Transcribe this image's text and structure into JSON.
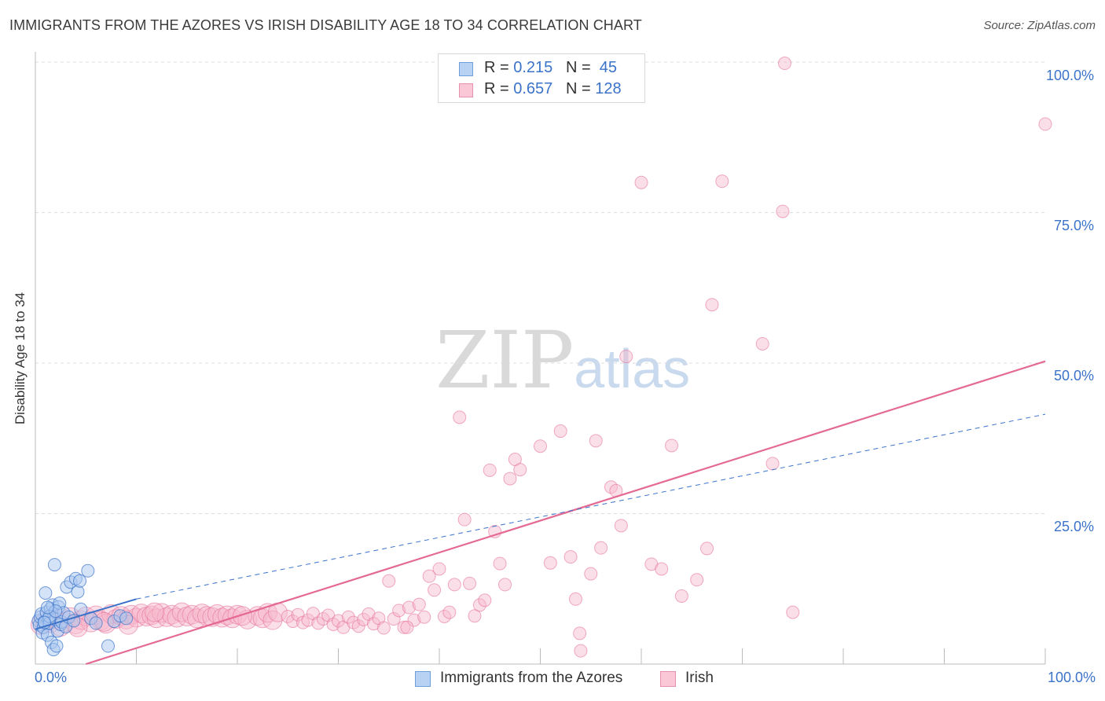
{
  "title": "IMMIGRANTS FROM THE AZORES VS IRISH DISABILITY AGE 18 TO 34 CORRELATION CHART",
  "source": "Source: ZipAtlas.com",
  "watermark": {
    "zip": "ZIP",
    "atlas": "atlas"
  },
  "colors": {
    "blue": "#3b73c9",
    "blue_fill": "#a9c8f0",
    "pink": "#e46a94",
    "pink_fill": "#f6b9cc",
    "grid": "#dddddd",
    "axis_text": "#3b73c9"
  },
  "legend": {
    "rows": [
      {
        "r_label": "R = ",
        "r_value": "0.215",
        "n_label": "N = ",
        "n_value": "45"
      },
      {
        "r_label": "R = ",
        "r_value": "0.657",
        "n_label": "N = ",
        "n_value": "128"
      }
    ]
  },
  "bottom_legend": {
    "series1": "Immigrants from the Azores",
    "series2": "Irish"
  },
  "chart_data": {
    "type": "scatter",
    "title": "IMMIGRANTS FROM THE AZORES VS IRISH DISABILITY AGE 18 TO 34 CORRELATION CHART",
    "xlabel": "",
    "ylabel": "Disability Age 18 to 34",
    "xlim": [
      0,
      100
    ],
    "ylim": [
      0,
      103
    ],
    "x_tick_labels": [
      "0.0%",
      "100.0%"
    ],
    "y_tick_labels": [
      "100.0%",
      "75.0%",
      "50.0%",
      "25.0%"
    ],
    "y_ticks": [
      100,
      75,
      50,
      25
    ],
    "series": [
      {
        "name": "Immigrants from the Azores",
        "r": 0.215,
        "n": 45,
        "points": [
          [
            0.3,
            7.2
          ],
          [
            0.4,
            6.5
          ],
          [
            0.5,
            7.8
          ],
          [
            0.6,
            8.3
          ],
          [
            0.7,
            5.2
          ],
          [
            0.8,
            6.1
          ],
          [
            0.9,
            7.0
          ],
          [
            1.0,
            11.8
          ],
          [
            1.1,
            8.6
          ],
          [
            1.2,
            4.8
          ],
          [
            1.3,
            7.5
          ],
          [
            1.4,
            6.8
          ],
          [
            1.5,
            9.2
          ],
          [
            1.6,
            3.6
          ],
          [
            1.7,
            9.8
          ],
          [
            1.8,
            2.4
          ],
          [
            1.9,
            16.5
          ],
          [
            2.0,
            7.4
          ],
          [
            2.1,
            3.0
          ],
          [
            2.2,
            5.5
          ],
          [
            2.3,
            9.5
          ],
          [
            2.4,
            10.1
          ],
          [
            2.5,
            6.6
          ],
          [
            2.6,
            7.0
          ],
          [
            2.8,
            8.5
          ],
          [
            3.0,
            6.2
          ],
          [
            3.1,
            12.8
          ],
          [
            3.3,
            7.8
          ],
          [
            3.5,
            13.6
          ],
          [
            4.0,
            14.2
          ],
          [
            4.2,
            12.0
          ],
          [
            4.4,
            13.8
          ],
          [
            4.5,
            9.1
          ],
          [
            5.2,
            15.5
          ],
          [
            5.5,
            7.6
          ],
          [
            6.0,
            6.8
          ],
          [
            7.2,
            3.0
          ],
          [
            7.8,
            7.1
          ],
          [
            8.4,
            8.0
          ],
          [
            9.0,
            7.6
          ],
          [
            1.4,
            7.9
          ],
          [
            0.9,
            6.9
          ],
          [
            2.0,
            8.8
          ],
          [
            1.2,
            9.4
          ],
          [
            3.8,
            7.2
          ]
        ],
        "trend": {
          "x": [
            0,
            10
          ],
          "y": [
            5.8,
            10.8
          ],
          "dashed_extension": {
            "x": [
              10,
              100
            ],
            "y": [
              10.8,
              41.5
            ]
          }
        }
      },
      {
        "name": "Irish",
        "r": 0.657,
        "n": 128,
        "points": [
          [
            0.5,
            6.5
          ],
          [
            1.0,
            7.2
          ],
          [
            1.5,
            6.8
          ],
          [
            2.0,
            7.5
          ],
          [
            2.5,
            6.2
          ],
          [
            3.0,
            7.0
          ],
          [
            3.5,
            7.8
          ],
          [
            4.0,
            6.6
          ],
          [
            4.5,
            7.3
          ],
          [
            5.0,
            7.9
          ],
          [
            5.5,
            6.9
          ],
          [
            6.0,
            8.1
          ],
          [
            6.5,
            7.2
          ],
          [
            7.0,
            6.7
          ],
          [
            7.5,
            8.3
          ],
          [
            8.0,
            7.5
          ],
          [
            8.5,
            8.0
          ],
          [
            9.0,
            7.4
          ],
          [
            9.5,
            8.2
          ],
          [
            10.0,
            7.7
          ],
          [
            10.5,
            8.4
          ],
          [
            11.0,
            7.9
          ],
          [
            11.5,
            8.1
          ],
          [
            12.0,
            7.6
          ],
          [
            12.5,
            8.5
          ],
          [
            13.0,
            7.8
          ],
          [
            13.5,
            8.2
          ],
          [
            14.0,
            7.7
          ],
          [
            14.5,
            8.6
          ],
          [
            15.0,
            7.9
          ],
          [
            15.5,
            8.2
          ],
          [
            16.0,
            7.6
          ],
          [
            16.5,
            8.4
          ],
          [
            17.0,
            8.0
          ],
          [
            17.5,
            7.8
          ],
          [
            18.0,
            8.3
          ],
          [
            18.5,
            7.7
          ],
          [
            19.0,
            8.1
          ],
          [
            19.5,
            7.6
          ],
          [
            20.0,
            8.2
          ],
          [
            21.0,
            7.4
          ],
          [
            22.0,
            8.0
          ],
          [
            22.5,
            7.6
          ],
          [
            23.0,
            8.5
          ],
          [
            23.5,
            7.3
          ],
          [
            24.0,
            8.6
          ],
          [
            25.0,
            7.9
          ],
          [
            25.5,
            7.1
          ],
          [
            26.0,
            8.2
          ],
          [
            26.5,
            6.9
          ],
          [
            27.0,
            7.3
          ],
          [
            27.5,
            8.4
          ],
          [
            28.0,
            6.8
          ],
          [
            28.5,
            7.5
          ],
          [
            29.0,
            8.1
          ],
          [
            29.5,
            6.6
          ],
          [
            30.0,
            7.2
          ],
          [
            30.5,
            6.1
          ],
          [
            31.0,
            7.8
          ],
          [
            31.5,
            6.9
          ],
          [
            32.0,
            6.3
          ],
          [
            32.5,
            7.4
          ],
          [
            33.0,
            8.3
          ],
          [
            33.5,
            6.7
          ],
          [
            34.0,
            7.6
          ],
          [
            34.5,
            6.0
          ],
          [
            35.0,
            13.8
          ],
          [
            35.5,
            7.5
          ],
          [
            36.0,
            8.9
          ],
          [
            36.5,
            6.1
          ],
          [
            37.0,
            9.4
          ],
          [
            37.5,
            7.3
          ],
          [
            38.0,
            9.9
          ],
          [
            38.5,
            7.8
          ],
          [
            39.0,
            14.6
          ],
          [
            39.5,
            12.3
          ],
          [
            40.0,
            15.8
          ],
          [
            40.5,
            7.9
          ],
          [
            41.0,
            8.6
          ],
          [
            41.5,
            13.2
          ],
          [
            42.0,
            41.0
          ],
          [
            42.5,
            24.0
          ],
          [
            43.0,
            13.4
          ],
          [
            43.5,
            8.0
          ],
          [
            44.0,
            9.8
          ],
          [
            44.5,
            10.6
          ],
          [
            45.0,
            32.2
          ],
          [
            45.5,
            22.0
          ],
          [
            46.0,
            16.7
          ],
          [
            46.5,
            13.2
          ],
          [
            47.0,
            30.8
          ],
          [
            47.5,
            34.0
          ],
          [
            48.0,
            32.3
          ],
          [
            50.0,
            36.2
          ],
          [
            51.0,
            16.8
          ],
          [
            52.0,
            38.7
          ],
          [
            53.0,
            17.8
          ],
          [
            53.5,
            10.8
          ],
          [
            54.0,
            2.2
          ],
          [
            55.0,
            15.0
          ],
          [
            55.5,
            37.1
          ],
          [
            56.0,
            19.3
          ],
          [
            57.0,
            29.4
          ],
          [
            57.5,
            28.8
          ],
          [
            58.0,
            23.0
          ],
          [
            58.5,
            51.1
          ],
          [
            60.0,
            80.0
          ],
          [
            61.0,
            16.6
          ],
          [
            62.0,
            15.8
          ],
          [
            63.0,
            36.3
          ],
          [
            64.0,
            11.3
          ],
          [
            65.5,
            14.0
          ],
          [
            66.5,
            19.2
          ],
          [
            67.0,
            59.7
          ],
          [
            68.0,
            80.2
          ],
          [
            72.0,
            53.2
          ],
          [
            73.0,
            33.3
          ],
          [
            74.0,
            75.2
          ],
          [
            75.0,
            8.6
          ],
          [
            74.2,
            99.8
          ],
          [
            100.0,
            89.7
          ],
          [
            53.9,
            5.1
          ],
          [
            36.8,
            6.1
          ],
          [
            20.5,
            8.0
          ],
          [
            9.2,
            6.5
          ],
          [
            4.2,
            6.1
          ],
          [
            6.8,
            7.0
          ],
          [
            11.8,
            8.6
          ]
        ],
        "trend": {
          "x": [
            5,
            100
          ],
          "y": [
            0,
            50.3
          ]
        }
      }
    ]
  }
}
